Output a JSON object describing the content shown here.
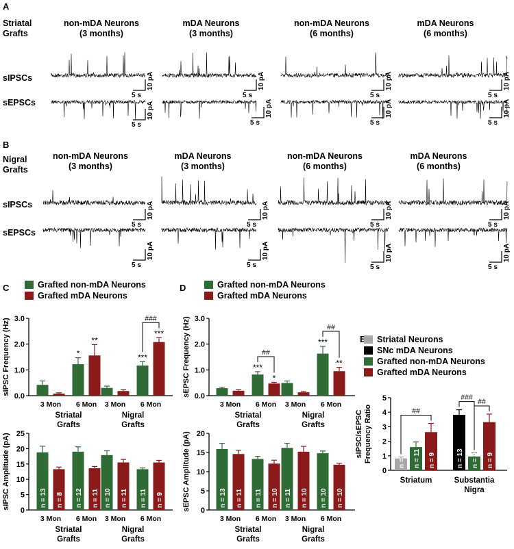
{
  "colors": {
    "green": "#2e6b35",
    "red": "#8b1a1a",
    "gray": "#a8a8a8",
    "black": "#000000"
  },
  "panel_labels": [
    "A",
    "B",
    "C",
    "D",
    "E"
  ],
  "panel_a": {
    "row_title": [
      "Striatal",
      "Grafts"
    ],
    "columns": [
      [
        "non-mDA Neurons",
        "(3 months)"
      ],
      [
        "mDA Neurons",
        "(3 months)"
      ],
      [
        "non-mDA Neurons",
        "(6 months)"
      ],
      [
        "mDA Neurons",
        "(6 months)"
      ]
    ],
    "trace_labels": [
      "sIPSCs",
      "sEPSCs"
    ],
    "scale_time": "5 s",
    "scale_amp": "10 pA"
  },
  "panel_b": {
    "row_title": [
      "Nigral",
      "Grafts"
    ],
    "columns": [
      [
        "non-mDA Neurons",
        "(3 months)"
      ],
      [
        "mDA Neurons",
        "(3 months)"
      ],
      [
        "non-mDA Neurons",
        "(6 months)"
      ],
      [
        "mDA Neurons",
        "(6 months)"
      ]
    ],
    "trace_labels": [
      "sIPSCs",
      "sEPSCs"
    ],
    "scale_time": "5 s",
    "scale_amp": "10 pA"
  },
  "chart_data": [
    {
      "id": "C-top",
      "type": "bar",
      "ylabel": "sIPSC Frequency (Hz)",
      "ylim": [
        0,
        3.0
      ],
      "yticks": [
        "0.0",
        "1.0",
        "2.0",
        "3.0"
      ],
      "legend": [
        "Grafted non-mDA Neurons",
        "Grafted mDA Neurons"
      ],
      "groups": [
        {
          "name": [
            "Striatal",
            "Grafts"
          ],
          "ticks": [
            "3 Mon",
            "6 Mon"
          ],
          "bars": [
            {
              "c": "green",
              "v": 0.42,
              "e": 0.15,
              "s": ""
            },
            {
              "c": "red",
              "v": 0.08,
              "e": 0.03,
              "s": ""
            },
            {
              "c": "green",
              "v": 1.22,
              "e": 0.25,
              "s": "*"
            },
            {
              "c": "red",
              "v": 1.56,
              "e": 0.42,
              "s": "**"
            }
          ]
        },
        {
          "name": [
            "Nigral",
            "Grafts"
          ],
          "ticks": [
            "3 Mon",
            "6 Mon"
          ],
          "bars": [
            {
              "c": "green",
              "v": 0.3,
              "e": 0.07,
              "s": ""
            },
            {
              "c": "red",
              "v": 0.18,
              "e": 0.05,
              "s": ""
            },
            {
              "c": "green",
              "v": 1.17,
              "e": 0.15,
              "s": "***"
            },
            {
              "c": "red",
              "v": 2.08,
              "e": 0.17,
              "s": "***"
            }
          ]
        }
      ],
      "brackets": [
        {
          "group": 1,
          "from": 2,
          "to": 3,
          "label": "###"
        }
      ]
    },
    {
      "id": "C-bottom",
      "type": "bar",
      "ylabel": "sIPSC Amplitude (pA)",
      "ylim": [
        0,
        25
      ],
      "yticks": [
        "0",
        "5",
        "10",
        "15",
        "20",
        "25"
      ],
      "groups": [
        {
          "name": [
            "Striatal",
            "Grafts"
          ],
          "ticks": [
            "3 Mon",
            "6 Mon"
          ],
          "bars": [
            {
              "c": "green",
              "v": 18.8,
              "e": 2.0,
              "n": "n = 13"
            },
            {
              "c": "red",
              "v": 13.3,
              "e": 0.7,
              "n": "n = 8"
            },
            {
              "c": "green",
              "v": 19.0,
              "e": 1.6,
              "n": "n = 12"
            },
            {
              "c": "red",
              "v": 13.6,
              "e": 0.6,
              "n": "n = 11"
            }
          ]
        },
        {
          "name": [
            "Nigral",
            "Grafts"
          ],
          "ticks": [
            "3 Mon",
            "6 Mon"
          ],
          "bars": [
            {
              "c": "green",
              "v": 17.9,
              "e": 1.4,
              "n": "n = 10"
            },
            {
              "c": "red",
              "v": 15.5,
              "e": 1.0,
              "n": "n = 11"
            },
            {
              "c": "green",
              "v": 13.3,
              "e": 0.4,
              "n": "n = 11"
            },
            {
              "c": "red",
              "v": 15.5,
              "e": 0.7,
              "n": "n = 9"
            }
          ]
        }
      ]
    },
    {
      "id": "D-top",
      "type": "bar",
      "ylabel": "sEPSC Frequency (Hz)",
      "ylim": [
        0,
        3.0
      ],
      "yticks": [
        "0.0",
        "1.0",
        "2.0",
        "3.0"
      ],
      "legend": [
        "Grafted non-mDA Neurons",
        "Grafted mDA Neurons"
      ],
      "groups": [
        {
          "name": [
            "Striatal",
            "Grafts"
          ],
          "ticks": [
            "3 Mon",
            "6 Mon"
          ],
          "bars": [
            {
              "c": "green",
              "v": 0.29,
              "e": 0.04,
              "s": ""
            },
            {
              "c": "red",
              "v": 0.19,
              "e": 0.04,
              "s": ""
            },
            {
              "c": "green",
              "v": 0.82,
              "e": 0.11,
              "s": "***"
            },
            {
              "c": "red",
              "v": 0.47,
              "e": 0.05,
              "s": "*"
            }
          ]
        },
        {
          "name": [
            "Nigral",
            "Grafts"
          ],
          "ticks": [
            "3 Mon",
            "6 Mon"
          ],
          "bars": [
            {
              "c": "green",
              "v": 0.49,
              "e": 0.08,
              "s": ""
            },
            {
              "c": "red",
              "v": 0.13,
              "e": 0.03,
              "s": ""
            },
            {
              "c": "green",
              "v": 1.63,
              "e": 0.28,
              "s": "***"
            },
            {
              "c": "red",
              "v": 0.95,
              "e": 0.15,
              "s": "**"
            }
          ]
        }
      ],
      "brackets": [
        {
          "group": 0,
          "from": 2,
          "to": 3,
          "label": "##"
        },
        {
          "group": 1,
          "from": 2,
          "to": 3,
          "label": "##"
        }
      ]
    },
    {
      "id": "D-bottom",
      "type": "bar",
      "ylabel": "sEPSC Amplitude (pA)",
      "ylim": [
        0,
        20
      ],
      "yticks": [
        "0",
        "5",
        "10",
        "15",
        "20"
      ],
      "groups": [
        {
          "name": [
            "Striatal",
            "Grafts"
          ],
          "ticks": [
            "3 Mon",
            "6 Mon"
          ],
          "bars": [
            {
              "c": "green",
              "v": 15.9,
              "e": 1.5,
              "n": "n = 13"
            },
            {
              "c": "red",
              "v": 14.6,
              "e": 1.0,
              "n": "n = 11"
            },
            {
              "c": "green",
              "v": 13.3,
              "e": 0.7,
              "n": "n = 11"
            },
            {
              "c": "red",
              "v": 12.1,
              "e": 0.9,
              "n": "n = 10"
            }
          ]
        },
        {
          "name": [
            "Nigral",
            "Grafts"
          ],
          "ticks": [
            "3 Mon",
            "6 Mon"
          ],
          "bars": [
            {
              "c": "green",
              "v": 16.2,
              "e": 1.2,
              "n": "n = 11"
            },
            {
              "c": "red",
              "v": 15.2,
              "e": 1.4,
              "n": "n = 10"
            },
            {
              "c": "green",
              "v": 14.8,
              "e": 0.6,
              "n": "n = 10"
            },
            {
              "c": "red",
              "v": 11.8,
              "e": 0.4,
              "n": "n = 10"
            }
          ]
        }
      ]
    },
    {
      "id": "E",
      "type": "bar",
      "ylabel": [
        "sIPSC/sEPSC",
        "Frequency Ratio"
      ],
      "ylim": [
        0,
        5
      ],
      "yticks": [
        "0",
        "1",
        "2",
        "3",
        "4",
        "5"
      ],
      "legend": [
        "Striatal Neurons",
        "SNc mDA Neurons",
        "Grafted non-mDA Neurons",
        "Grafted mDA Neurons"
      ],
      "groups": [
        {
          "name": [
            "Striatum"
          ],
          "bars": [
            {
              "c": "gray",
              "v": 0.82,
              "e": 0.1,
              "n": "n = 15"
            },
            {
              "c": "green",
              "v": 1.6,
              "e": 0.35,
              "n": "n = 11"
            },
            {
              "c": "red",
              "v": 2.63,
              "e": 0.6,
              "n": "n = 9"
            }
          ]
        },
        {
          "name": [
            "Substantia",
            "Nigra"
          ],
          "bars": [
            {
              "c": "black",
              "v": 3.82,
              "e": 0.35,
              "n": "n = 13"
            },
            {
              "c": "green",
              "v": 0.95,
              "e": 0.25,
              "n": "n = 9"
            },
            {
              "c": "red",
              "v": 3.32,
              "e": 0.55,
              "n": "n = 9"
            }
          ]
        }
      ],
      "brackets": [
        {
          "group": 0,
          "from": 0,
          "to": 2,
          "label": "##"
        },
        {
          "group": 1,
          "from": 0,
          "to": 1,
          "label": "###"
        },
        {
          "group": 1,
          "from": 1,
          "to": 2,
          "label": "##"
        }
      ]
    }
  ]
}
